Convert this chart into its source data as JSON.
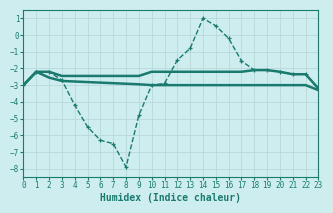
{
  "line_main_x": [
    0,
    1,
    2,
    3,
    4,
    5,
    6,
    7,
    8,
    9,
    10,
    11,
    12,
    13,
    14,
    15,
    16,
    17,
    18,
    19,
    20,
    21,
    22,
    23
  ],
  "line_main_y": [
    -3.0,
    -2.2,
    -2.2,
    -2.7,
    -4.2,
    -5.5,
    -6.3,
    -6.5,
    -7.9,
    -4.8,
    -3.0,
    -2.9,
    -1.5,
    -0.8,
    1.0,
    0.55,
    -0.2,
    -1.55,
    -2.1,
    -2.1,
    -2.2,
    -2.35,
    -2.35,
    -3.2
  ],
  "line_upper_x": [
    0,
    1,
    2,
    3,
    9,
    10,
    11,
    12,
    13,
    14,
    15,
    16,
    17,
    18,
    19,
    20,
    21,
    22,
    23
  ],
  "line_upper_y": [
    -3.0,
    -2.2,
    -2.2,
    -2.45,
    -2.45,
    -2.2,
    -2.2,
    -2.2,
    -2.2,
    -2.2,
    -2.2,
    -2.2,
    -2.2,
    -2.1,
    -2.1,
    -2.2,
    -2.35,
    -2.35,
    -3.2
  ],
  "line_lower_x": [
    0,
    1,
    2,
    3,
    9,
    10,
    11,
    12,
    13,
    14,
    15,
    16,
    17,
    18,
    19,
    20,
    21,
    22,
    23
  ],
  "line_lower_y": [
    -3.0,
    -2.2,
    -2.55,
    -2.75,
    -2.95,
    -3.0,
    -3.0,
    -3.0,
    -3.0,
    -3.0,
    -3.0,
    -3.0,
    -3.0,
    -3.0,
    -3.0,
    -3.0,
    -3.0,
    -3.0,
    -3.3
  ],
  "color": "#1a7a6e",
  "bg_color": "#cdedef",
  "grid_color": "#b8d8da",
  "xlabel": "Humidex (Indice chaleur)",
  "xlim": [
    0,
    23
  ],
  "ylim": [
    -8.5,
    1.5
  ],
  "yticks": [
    1,
    0,
    -1,
    -2,
    -3,
    -4,
    -5,
    -6,
    -7,
    -8
  ],
  "xticks": [
    0,
    1,
    2,
    3,
    4,
    5,
    6,
    7,
    8,
    9,
    10,
    11,
    12,
    13,
    14,
    15,
    16,
    17,
    18,
    19,
    20,
    21,
    22,
    23
  ],
  "tick_fontsize": 5.5,
  "xlabel_fontsize": 7,
  "line_width": 1.0,
  "line_thick": 1.8,
  "marker_size": 3.5
}
